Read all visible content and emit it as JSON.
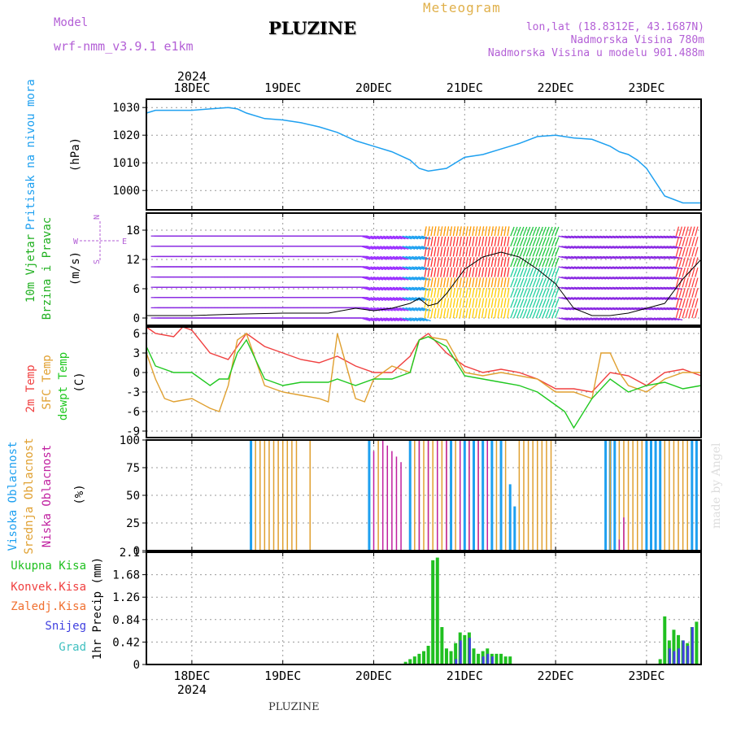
{
  "header": {
    "title": "PLUZINE",
    "subtitle": "Meteogram",
    "model_label": "Model",
    "model_name": "wrf-nmm_v3.9.1 e1km",
    "location_line1": "lon,lat (18.8312E, 43.1687N)",
    "location_line2": "Nadmorska Visina 780m",
    "location_line3": "Nadmorska Visina u modelu 901.488m",
    "year": "2024",
    "footer_name": "PLUZINE",
    "credit": "made by Angel"
  },
  "colors": {
    "pressure": "#1ea0f0",
    "temp_2m": "#f04040",
    "temp_sfc": "#e0a030",
    "dewpoint": "#20c820",
    "cloud_high": "#1ea0f0",
    "cloud_mid": "#e0a030",
    "cloud_low": "#c020a0",
    "precip_total": "#20c020",
    "precip_conv": "#f04040",
    "precip_frz": "#f07030",
    "snow": "#4040e0",
    "graupel": "#40c0c0",
    "wind_label": "#20b020",
    "compass": "#b35fd6"
  },
  "chart_data": [
    {
      "type": "line",
      "panel": "pressure",
      "ylabel": [
        "Pritisak na nivou mora",
        "(hPa)"
      ],
      "x_ticks": [
        "18DEC",
        "19DEC",
        "20DEC",
        "21DEC",
        "22DEC",
        "23DEC"
      ],
      "x_range": [
        -0.5,
        5.6
      ],
      "ylim": [
        993,
        1033
      ],
      "y_ticks": [
        1000,
        1010,
        1020,
        1030
      ],
      "grid": true,
      "series": [
        {
          "x": [
            -0.5,
            -0.4,
            -0.2,
            0,
            0.2,
            0.4,
            0.5,
            0.6,
            0.8,
            1.0,
            1.2,
            1.4,
            1.6,
            1.8,
            2.0,
            2.2,
            2.4,
            2.5,
            2.6,
            2.8,
            3.0,
            3.2,
            3.4,
            3.6,
            3.8,
            4.0,
            4.2,
            4.4,
            4.6,
            4.7,
            4.8,
            4.9,
            5.0,
            5.1,
            5.2,
            5.4,
            5.6
          ],
          "y": [
            1028,
            1029,
            1029,
            1029,
            1029.5,
            1030,
            1029.5,
            1028,
            1026,
            1025.5,
            1024.5,
            1023,
            1021,
            1018,
            1016,
            1014,
            1011,
            1008,
            1007,
            1008,
            1012,
            1013,
            1015,
            1017,
            1019.5,
            1020,
            1019,
            1018.5,
            1016,
            1014,
            1013,
            1011,
            1008,
            1003,
            998,
            995.5,
            995.5
          ]
        }
      ]
    },
    {
      "type": "scatter",
      "panel": "wind",
      "ylabel": [
        "10m Vjetar",
        "Brzina i Pravac",
        "(m/s)"
      ],
      "compass": [
        "N",
        "S",
        "E",
        "W"
      ],
      "ylim": [
        -1.5,
        21.5
      ],
      "y_ticks": [
        0,
        6,
        12,
        18
      ],
      "grid": true,
      "speed_line": {
        "x": [
          -0.5,
          0,
          0.5,
          1.0,
          1.5,
          1.8,
          2.0,
          2.2,
          2.4,
          2.5,
          2.6,
          2.7,
          2.8,
          3.0,
          3.2,
          3.4,
          3.6,
          3.8,
          4.0,
          4.2,
          4.4,
          4.6,
          4.8,
          5.0,
          5.2,
          5.4,
          5.6
        ],
        "y": [
          0.5,
          0.5,
          0.8,
          1.0,
          1.0,
          2.0,
          1.5,
          2.0,
          3.0,
          4.0,
          2.5,
          3.0,
          5.0,
          10.0,
          12.5,
          13.5,
          12.5,
          10.0,
          7.0,
          2.0,
          0.5,
          0.5,
          1.0,
          2.0,
          3.0,
          8.0,
          12.0
        ]
      }
    },
    {
      "type": "line",
      "panel": "temperature",
      "ylabel": [
        "2m Temp",
        "SFC Temp",
        "dewpt Temp",
        "(C)"
      ],
      "ylim": [
        -10,
        7
      ],
      "y_ticks": [
        -9,
        -6,
        -3,
        0,
        3,
        6
      ],
      "grid": true,
      "series": [
        {
          "name": "2m Temp",
          "x": [
            -0.5,
            -0.4,
            -0.2,
            -0.1,
            0,
            0.2,
            0.4,
            0.5,
            0.6,
            0.8,
            1.0,
            1.2,
            1.4,
            1.6,
            1.8,
            2.0,
            2.2,
            2.4,
            2.5,
            2.6,
            2.8,
            3.0,
            3.2,
            3.4,
            3.6,
            3.8,
            4.0,
            4.2,
            4.4,
            4.6,
            4.8,
            5.0,
            5.2,
            5.4,
            5.6
          ],
          "y": [
            7,
            6,
            5.5,
            7,
            6.5,
            3,
            2,
            4,
            6,
            4,
            3,
            2,
            1.5,
            2.5,
            1,
            0,
            0,
            2.5,
            5,
            6,
            3,
            1,
            0,
            0.5,
            0,
            -1,
            -2.5,
            -2.5,
            -3,
            0,
            -0.5,
            -2,
            0,
            0.5,
            -0.5
          ]
        },
        {
          "name": "SFC Temp",
          "x": [
            -0.5,
            -0.4,
            -0.3,
            -0.2,
            0,
            0.2,
            0.3,
            0.4,
            0.5,
            0.6,
            0.8,
            1.0,
            1.2,
            1.4,
            1.5,
            1.6,
            1.8,
            1.9,
            2.0,
            2.2,
            2.4,
            2.5,
            2.6,
            2.8,
            3.0,
            3.2,
            3.4,
            3.6,
            3.8,
            4.0,
            4.2,
            4.4,
            4.5,
            4.6,
            4.7,
            4.8,
            5.0,
            5.2,
            5.4,
            5.6
          ],
          "y": [
            3,
            -1,
            -4,
            -4.5,
            -4,
            -5.5,
            -6,
            -2,
            5,
            6,
            -2,
            -3,
            -3.5,
            -4,
            -4.5,
            6,
            -4,
            -4.5,
            -1,
            1,
            0,
            5,
            5.5,
            5,
            0,
            -0.5,
            0,
            -0.5,
            -1,
            -3,
            -3,
            -4,
            3,
            3,
            0,
            -2,
            -3,
            -1,
            0,
            0
          ]
        },
        {
          "name": "dewpt Temp",
          "x": [
            -0.5,
            -0.4,
            -0.2,
            0,
            0.2,
            0.3,
            0.4,
            0.5,
            0.6,
            0.8,
            1.0,
            1.2,
            1.4,
            1.5,
            1.6,
            1.8,
            2.0,
            2.2,
            2.4,
            2.5,
            2.6,
            2.8,
            3.0,
            3.2,
            3.4,
            3.6,
            3.8,
            4.0,
            4.1,
            4.2,
            4.4,
            4.6,
            4.8,
            5.0,
            5.2,
            5.4,
            5.6
          ],
          "y": [
            4,
            1,
            0,
            0,
            -2,
            -1,
            -1,
            3,
            5,
            -1,
            -2,
            -1.5,
            -1.5,
            -1.5,
            -1,
            -2,
            -1,
            -1,
            0,
            5,
            5.5,
            4,
            -0.5,
            -1,
            -1.5,
            -2,
            -3,
            -5,
            -6,
            -8.5,
            -4,
            -1,
            -3,
            -2,
            -1.5,
            -2.5,
            -2
          ]
        }
      ]
    },
    {
      "type": "bar",
      "panel": "clouds",
      "ylabel": [
        "Visoka Oblacnost",
        "Srednja Oblacnost",
        "Niska Oblacnost",
        "(%)"
      ],
      "ylim": [
        0,
        100
      ],
      "y_ticks": [
        0,
        25,
        50,
        75,
        100
      ],
      "grid": true,
      "series": [
        {
          "name": "Visoka Oblacnost",
          "x": [
            0.65,
            1.95,
            2.4,
            2.85,
            3.0,
            3.1,
            3.2,
            3.3,
            3.4,
            3.5,
            3.55,
            4.55,
            4.6,
            4.65,
            5.0,
            5.05,
            5.1,
            5.15,
            5.5,
            5.55
          ],
          "values": [
            100,
            100,
            100,
            100,
            100,
            100,
            100,
            100,
            100,
            60,
            40,
            100,
            100,
            100,
            100,
            100,
            100,
            100,
            100,
            100
          ]
        },
        {
          "name": "Srednja Oblacnost",
          "x": [
            0.7,
            0.75,
            0.8,
            0.85,
            0.9,
            0.95,
            1.0,
            1.05,
            1.1,
            1.15,
            1.3,
            2.05,
            2.45,
            2.5,
            2.55,
            2.6,
            2.65,
            2.7,
            2.75,
            2.8,
            2.9,
            3.05,
            3.15,
            3.25,
            3.35,
            3.45,
            3.6,
            3.65,
            3.7,
            3.75,
            3.8,
            3.85,
            3.9,
            3.95,
            4.6,
            4.7,
            4.75,
            4.8,
            4.85,
            4.9,
            4.95,
            5.2,
            5.25,
            5.3,
            5.35,
            5.4,
            5.45
          ],
          "values": [
            100,
            100,
            100,
            100,
            100,
            100,
            100,
            100,
            100,
            100,
            100,
            100,
            100,
            100,
            100,
            100,
            100,
            100,
            100,
            100,
            100,
            100,
            100,
            100,
            100,
            100,
            100,
            100,
            100,
            100,
            100,
            100,
            100,
            100,
            100,
            100,
            100,
            100,
            100,
            100,
            100,
            100,
            100,
            100,
            100,
            100,
            100
          ]
        },
        {
          "name": "Niska Oblacnost",
          "x": [
            2.0,
            2.1,
            2.15,
            2.2,
            2.25,
            2.3,
            2.5,
            2.6,
            2.7,
            2.8,
            2.95,
            3.05,
            3.15,
            3.25,
            4.7,
            4.75
          ],
          "values": [
            90,
            100,
            95,
            90,
            85,
            80,
            100,
            100,
            100,
            100,
            100,
            100,
            100,
            100,
            10,
            30
          ]
        }
      ]
    },
    {
      "type": "bar",
      "panel": "precipitation",
      "ylabel": [
        "1hr Precip (mm)"
      ],
      "legend": [
        "Ukupna Kisa",
        "Konvek.Kisa",
        "Zaledj.Kisa",
        "Snijeg",
        "Grad"
      ],
      "ylim": [
        0,
        2.1
      ],
      "y_ticks": [
        0,
        0.42,
        0.84,
        1.26,
        1.68,
        2.1
      ],
      "grid": true,
      "series": [
        {
          "name": "Ukupna Kisa",
          "x": [
            2.35,
            2.4,
            2.45,
            2.5,
            2.55,
            2.6,
            2.65,
            2.7,
            2.75,
            2.8,
            2.85,
            2.9,
            2.95,
            3.0,
            3.05,
            3.1,
            3.15,
            3.2,
            3.25,
            3.3,
            3.35,
            3.4,
            3.45,
            3.5,
            5.15,
            5.2,
            5.25,
            5.3,
            5.35,
            5.4,
            5.45,
            5.5,
            5.55
          ],
          "values": [
            0.05,
            0.1,
            0.15,
            0.2,
            0.25,
            0.35,
            1.95,
            2.0,
            0.7,
            0.3,
            0.25,
            0.4,
            0.6,
            0.55,
            0.6,
            0.3,
            0.2,
            0.25,
            0.3,
            0.2,
            0.2,
            0.2,
            0.15,
            0.15,
            0.1,
            0.9,
            0.45,
            0.65,
            0.55,
            0.45,
            0.4,
            0.7,
            0.8
          ]
        },
        {
          "name": "Snijeg",
          "x": [
            2.9,
            2.95,
            3.05,
            3.2,
            3.25,
            3.3,
            5.25,
            5.3,
            5.35,
            5.4,
            5.45,
            5.5
          ],
          "values": [
            0.1,
            0.45,
            0.5,
            0.15,
            0.2,
            0.15,
            0.3,
            0.25,
            0.3,
            0.45,
            0.35,
            0.7
          ]
        }
      ]
    }
  ]
}
